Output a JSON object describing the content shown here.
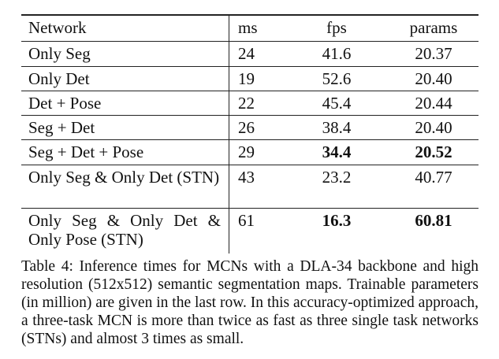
{
  "table": {
    "header": [
      "Network",
      "ms",
      "fps",
      "params"
    ],
    "rows": [
      [
        "Only Seg",
        "24",
        "41.6",
        "20.37"
      ],
      [
        "Only Det",
        "19",
        "52.6",
        "20.40"
      ],
      [
        "Det + Pose",
        "22",
        "45.4",
        "20.44"
      ],
      [
        "Seg + Det",
        "26",
        "38.4",
        "20.40"
      ],
      [
        "Seg + Det + Pose",
        "29",
        "34.4",
        "20.52"
      ],
      [
        "Only Seg & Only Det (STN)",
        "43",
        "23.2",
        "40.77"
      ],
      [
        "Only Seg & Only Det & Only Pose (STN)",
        "61",
        "16.3",
        "60.81"
      ]
    ],
    "caption": "Table 4: Inference times for MCNs with a DLA-34 backbone and high resolution (512x512) semantic segmentation maps. Trainable parameters (in million) are given in the last row. In this accuracy-optimized approach, a three-task MCN is more than twice as fast as three single task networks (STNs) and almost 3 times as small."
  }
}
